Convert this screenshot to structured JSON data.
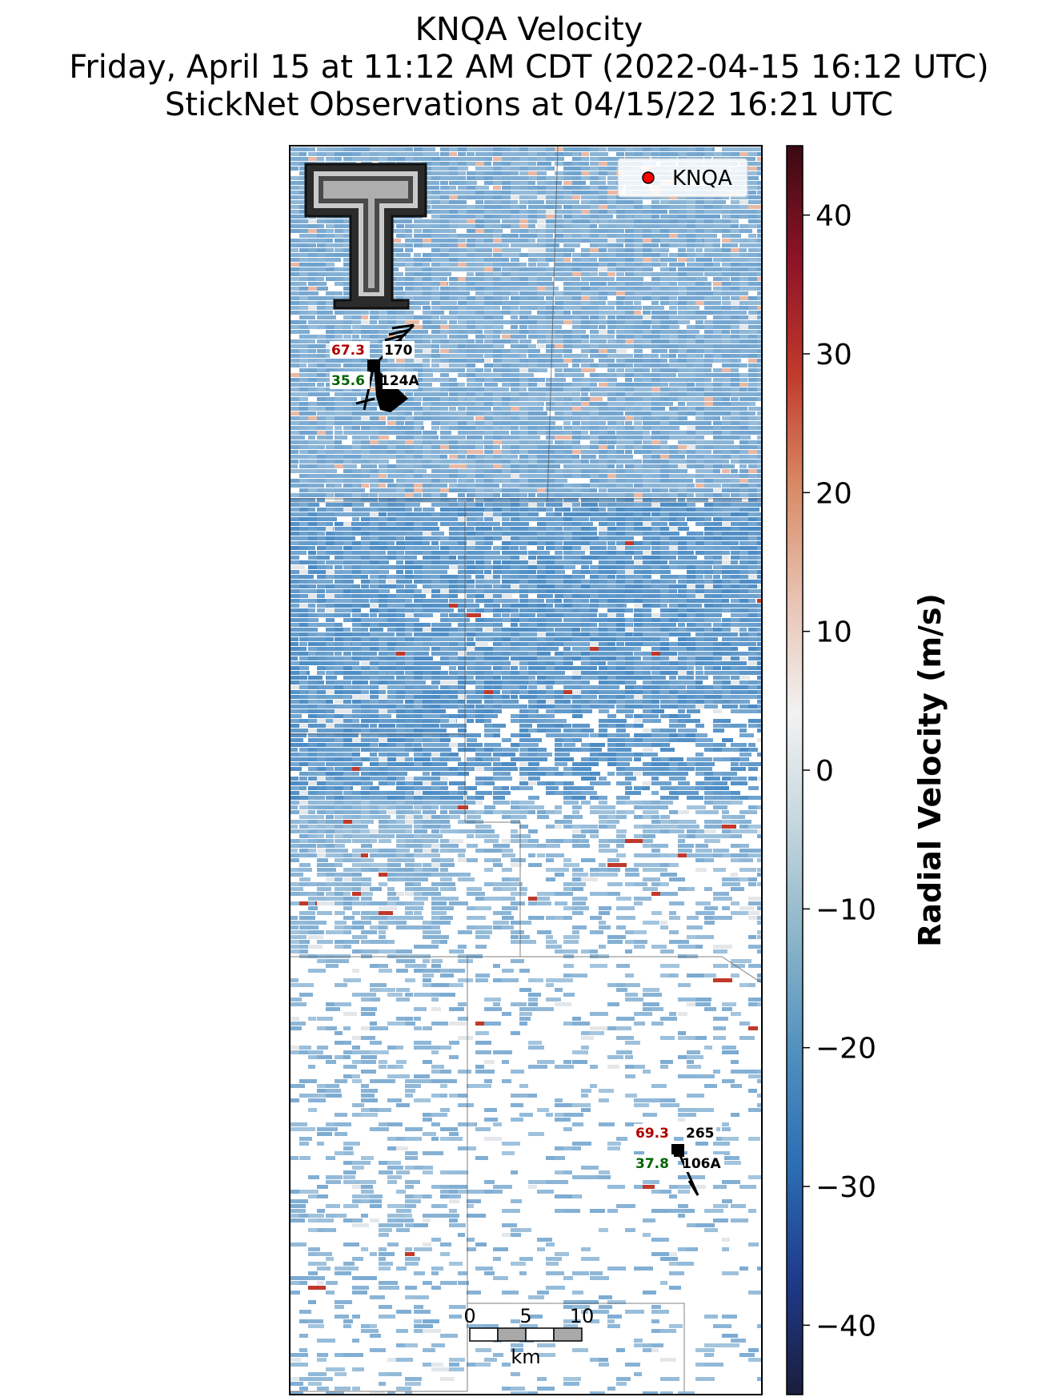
{
  "title": {
    "line1": "KNQA Velocity",
    "line2": "Friday, April 15 at 11:12 AM CDT (2022-04-15 16:12 UTC)",
    "line3": "StickNet Observations at 04/15/22 16:21 UTC"
  },
  "legend": {
    "label": "KNQA",
    "marker_color": "#ff0000"
  },
  "logo": {
    "name": "texas-tech-double-t-logo"
  },
  "stations": [
    {
      "id": "124A",
      "temperature": "67.3",
      "dewpoint": "35.6",
      "direction": "170",
      "temp_color": "#b00000",
      "dew_color": "#006400"
    },
    {
      "id": "106A",
      "temperature": "69.3",
      "dewpoint": "37.8",
      "direction": "265",
      "temp_color": "#b00000",
      "dew_color": "#006400"
    }
  ],
  "scale_bar": {
    "ticks": [
      "0",
      "5",
      "10"
    ],
    "unit": "km"
  },
  "colorbar": {
    "label": "Radial Velocity (m/s)",
    "ticks": [
      "40",
      "30",
      "20",
      "10",
      "0",
      "−10",
      "−20",
      "−30",
      "−40"
    ],
    "vmin": -45,
    "vmax": 45,
    "colors": [
      "#1a1d3d",
      "#1f3a8a",
      "#2b6db3",
      "#4f90bf",
      "#8ab4c9",
      "#c4d6de",
      "#f2f2f2",
      "#e8c3b3",
      "#d98a65",
      "#c0392b",
      "#8e1328",
      "#3a0a12"
    ]
  }
}
